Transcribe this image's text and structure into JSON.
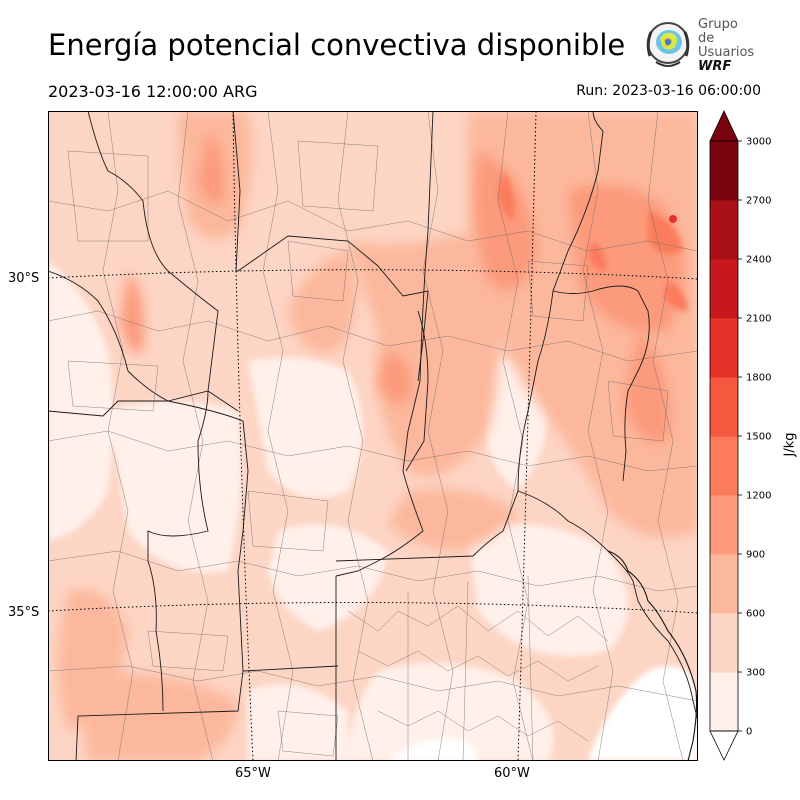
{
  "header": {
    "title": "Energía potencial convectiva disponible",
    "valid_time": "2023-03-16 12:00:00 ARG",
    "run_time": "Run: 2023-03-16 06:00:00"
  },
  "logo": {
    "line1": "Grupo de",
    "line2": "Usuarios",
    "line3": "WRF"
  },
  "map": {
    "lat_labels": [
      "30°S",
      "35°S"
    ],
    "lon_labels": [
      "65°W",
      "60°W"
    ]
  },
  "colorbar": {
    "unit": "J/kg",
    "ticks": [
      "3000",
      "2700",
      "2400",
      "2100",
      "1800",
      "1500",
      "1200",
      "900",
      "600",
      "300",
      "0"
    ],
    "colors": [
      "#fff0ea",
      "#fdd5c4",
      "#fcb89c",
      "#fc9a7b",
      "#fb7b5b",
      "#f6573f",
      "#e63328",
      "#c9181d",
      "#a91016",
      "#7a0510"
    ]
  }
}
